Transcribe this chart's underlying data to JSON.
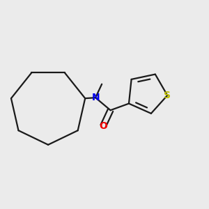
{
  "background_color": "#ebebeb",
  "bond_color": "#1a1a1a",
  "N_color": "#0000ee",
  "O_color": "#ee0000",
  "S_color": "#bbbb00",
  "line_width": 1.6,
  "figsize": [
    3.0,
    3.0
  ],
  "dpi": 100,
  "xlim": [
    0.05,
    0.95
  ],
  "ylim": [
    0.15,
    0.85
  ]
}
